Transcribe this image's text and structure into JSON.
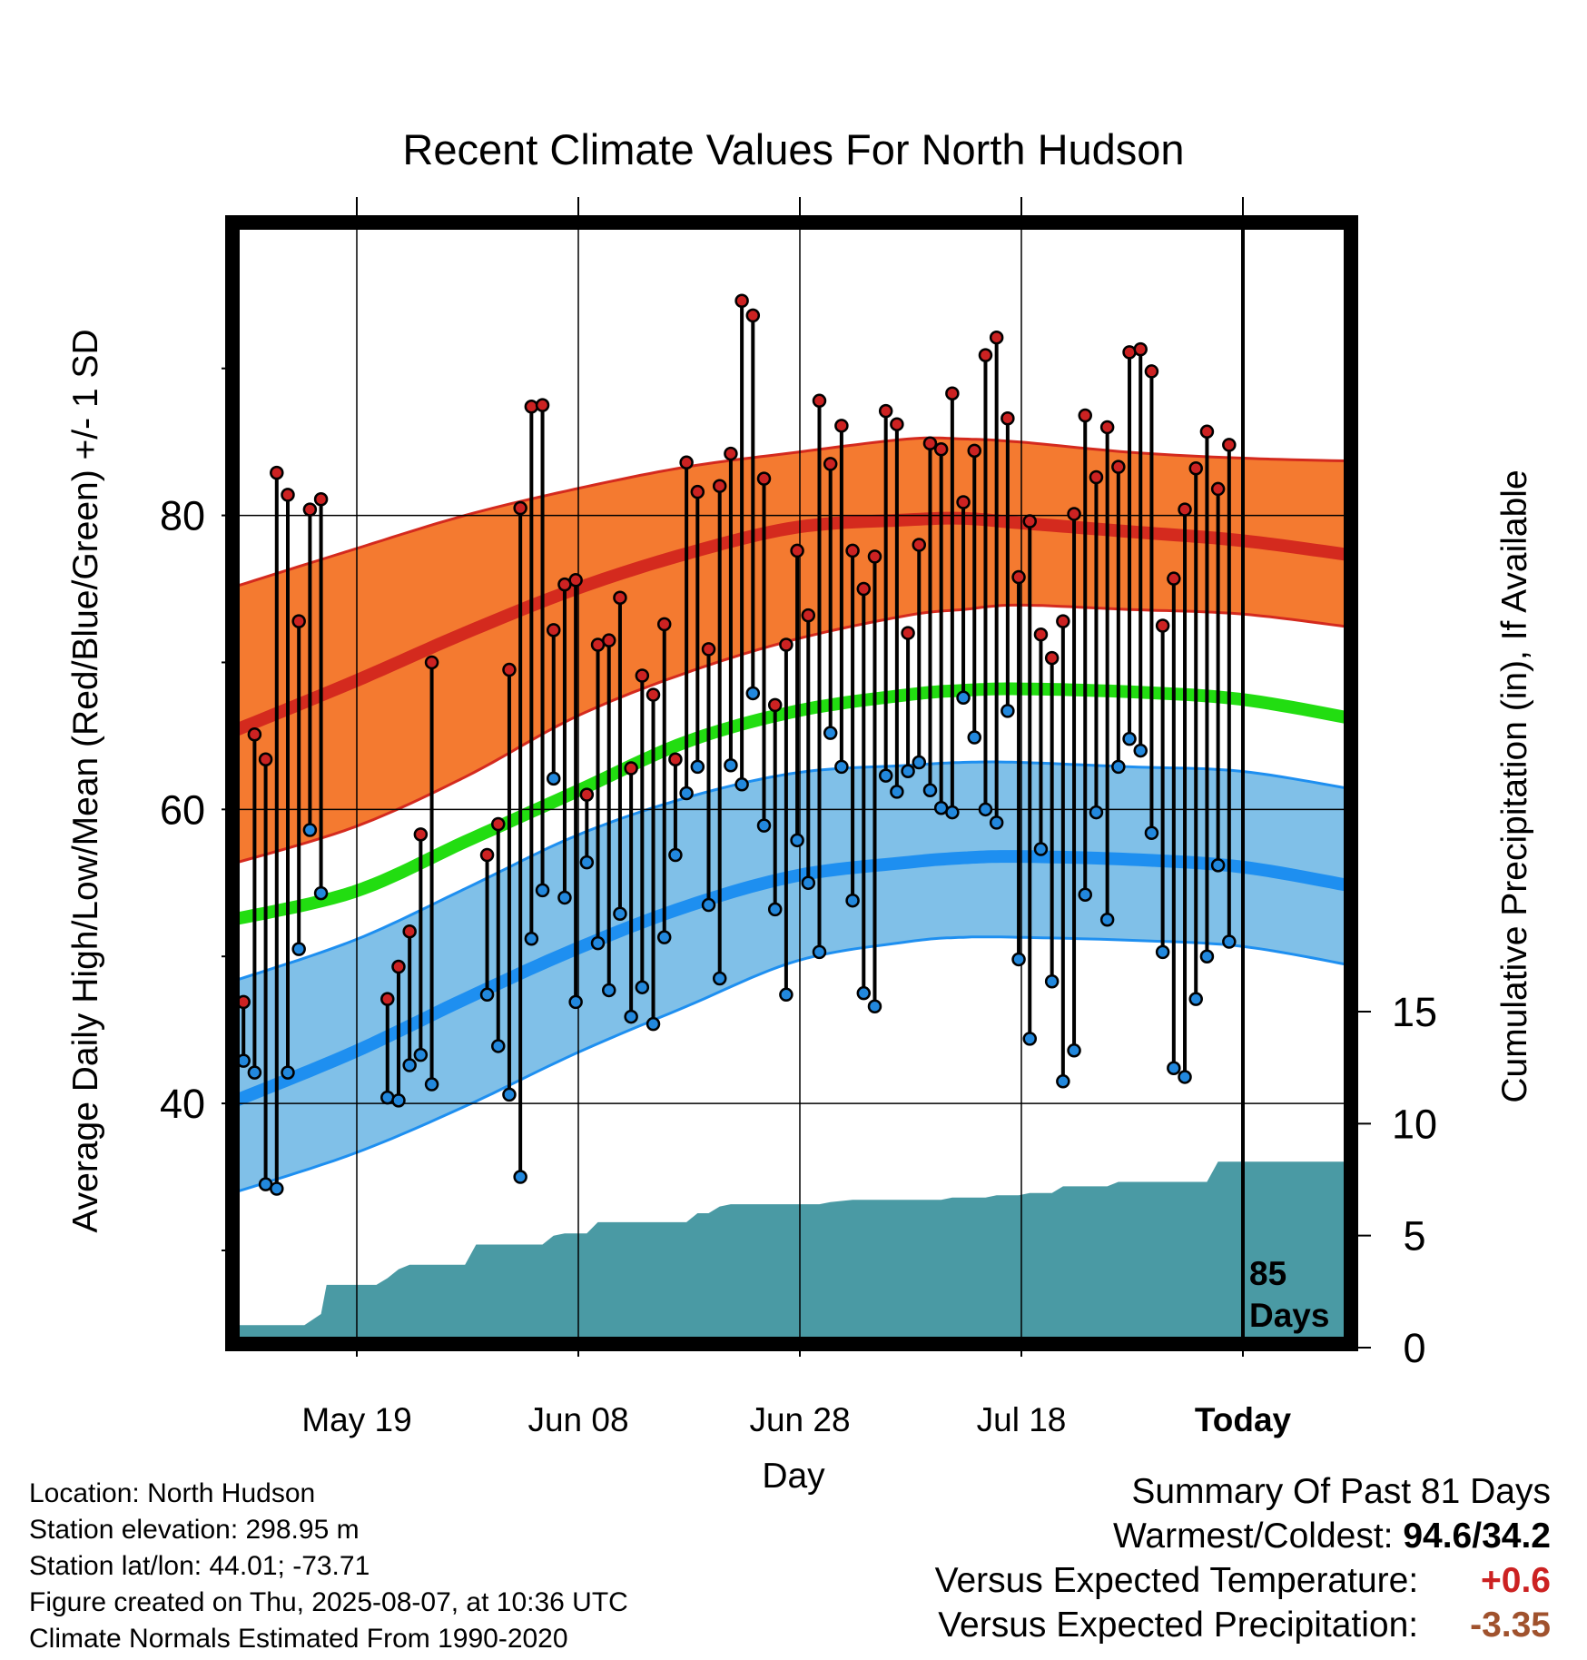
{
  "chart_data": {
    "type": "line",
    "title": "Recent Climate Values For North Hudson",
    "xlabel": "Day",
    "ylabel": "Average Daily High/Low/Mean (Red/Blue/Green) +/- 1 SD",
    "y2label": "Cumulative Precipitation (in), If Available",
    "xticks": [
      "May 19",
      "Jun 08",
      "Jun 28",
      "Jul 18",
      "Today"
    ],
    "yticks": [
      40,
      60,
      80
    ],
    "y2ticks": [
      0,
      5,
      10,
      15
    ],
    "ylim": [
      24.5,
      99
    ],
    "y2lim": [
      0,
      46
    ],
    "xlim": [
      -11,
      90
    ],
    "grid": true,
    "days_annotation": [
      "85",
      "Days"
    ],
    "colors": {
      "high": "#d42a1e",
      "high_band": "#f47a30",
      "low": "#1e8ff0",
      "low_band": "#80c0e8",
      "mean": "#22dd11",
      "observed_high_marker": "#cc2222",
      "observed_low_marker": "#2288dd",
      "precipitation": "#4a9aa4"
    },
    "normals": {
      "x": [
        -11,
        0,
        10,
        20,
        30,
        40,
        50,
        55,
        60,
        70,
        80,
        90
      ],
      "high_mean": [
        65.3,
        68.7,
        72,
        75,
        77.4,
        79.2,
        79.7,
        79.8,
        79.5,
        78.9,
        78.3,
        77.3
      ],
      "high_upper": [
        75.1,
        77.7,
        80,
        81.8,
        83.3,
        84.3,
        85.2,
        85.2,
        85.0,
        84.3,
        83.9,
        83.7
      ],
      "high_lower": [
        56.3,
        58.8,
        62.2,
        66.3,
        69.3,
        71.6,
        73.2,
        73.6,
        73.9,
        73.6,
        73.3,
        72.4
      ],
      "mean": [
        52.5,
        54.4,
        57.8,
        61.2,
        64.6,
        66.7,
        67.8,
        68.1,
        68.2,
        68.0,
        67.5,
        66.2
      ],
      "low_mean": [
        40.1,
        43.5,
        47.1,
        50.5,
        53.4,
        55.5,
        56.4,
        56.7,
        56.8,
        56.6,
        56.1,
        54.8
      ],
      "low_upper": [
        48.3,
        51.1,
        54.6,
        58.2,
        60.8,
        62.5,
        63.0,
        63.2,
        63.2,
        62.9,
        62.6,
        61.4
      ],
      "low_lower": [
        33.9,
        36.6,
        39.8,
        43.4,
        46.6,
        49.7,
        51.0,
        51.3,
        51.3,
        51.1,
        50.7,
        49.4
      ]
    },
    "observed": [
      {
        "day": -10,
        "high": 46.9,
        "low": 42.9
      },
      {
        "day": -9,
        "high": 65.1,
        "low": 42.1
      },
      {
        "day": -8,
        "high": 63.4,
        "low": 34.5
      },
      {
        "day": -7,
        "high": 82.9,
        "low": 34.2
      },
      {
        "day": -6,
        "high": 81.4,
        "low": 42.1
      },
      {
        "day": -5,
        "high": 72.8,
        "low": 50.5
      },
      {
        "day": -4,
        "high": 80.4,
        "low": 58.6
      },
      {
        "day": -3,
        "high": 81.1,
        "low": 54.3
      },
      {
        "day": 3,
        "high": 47.1,
        "low": 40.4
      },
      {
        "day": 4,
        "high": 49.3,
        "low": 40.2
      },
      {
        "day": 5,
        "high": 51.7,
        "low": 42.6
      },
      {
        "day": 6,
        "high": 58.3,
        "low": 43.3
      },
      {
        "day": 7,
        "high": 70.0,
        "low": 41.3
      },
      {
        "day": 12,
        "high": 56.9,
        "low": 47.4
      },
      {
        "day": 13,
        "high": 59.0,
        "low": 43.9
      },
      {
        "day": 14,
        "high": 69.5,
        "low": 40.6
      },
      {
        "day": 15,
        "high": 80.5,
        "low": 35.0
      },
      {
        "day": 16,
        "high": 87.4,
        "low": 51.2
      },
      {
        "day": 17,
        "high": 87.5,
        "low": 54.5
      },
      {
        "day": 18,
        "high": 72.2,
        "low": 62.1
      },
      {
        "day": 19,
        "high": 75.3,
        "low": 54.0
      },
      {
        "day": 20,
        "high": 75.6,
        "low": 46.9
      },
      {
        "day": 21,
        "high": 61.0,
        "low": 56.4
      },
      {
        "day": 22,
        "high": 71.2,
        "low": 50.9
      },
      {
        "day": 23,
        "high": 71.5,
        "low": 47.7
      },
      {
        "day": 24,
        "high": 74.4,
        "low": 52.9
      },
      {
        "day": 25,
        "high": 62.8,
        "low": 45.9
      },
      {
        "day": 26,
        "high": 69.1,
        "low": 47.9
      },
      {
        "day": 27,
        "high": 67.8,
        "low": 45.4
      },
      {
        "day": 28,
        "high": 72.6,
        "low": 51.3
      },
      {
        "day": 29,
        "high": 63.4,
        "low": 56.9
      },
      {
        "day": 30,
        "high": 83.6,
        "low": 61.1
      },
      {
        "day": 31,
        "high": 81.6,
        "low": 62.9
      },
      {
        "day": 32,
        "high": 70.9,
        "low": 53.5
      },
      {
        "day": 33,
        "high": 82.0,
        "low": 48.5
      },
      {
        "day": 34,
        "high": 84.2,
        "low": 63.0
      },
      {
        "day": 35,
        "high": 94.6,
        "low": 61.7
      },
      {
        "day": 36,
        "high": 93.6,
        "low": 67.9
      },
      {
        "day": 37,
        "high": 82.5,
        "low": 58.9
      },
      {
        "day": 38,
        "high": 67.1,
        "low": 53.2
      },
      {
        "day": 39,
        "high": 71.2,
        "low": 47.4
      },
      {
        "day": 40,
        "high": 77.6,
        "low": 57.9
      },
      {
        "day": 41,
        "high": 73.2,
        "low": 55.0
      },
      {
        "day": 42,
        "high": 87.8,
        "low": 50.3
      },
      {
        "day": 43,
        "high": 83.5,
        "low": 65.2
      },
      {
        "day": 44,
        "high": 86.1,
        "low": 62.9
      },
      {
        "day": 45,
        "high": 77.6,
        "low": 53.8
      },
      {
        "day": 46,
        "high": 75.0,
        "low": 47.5
      },
      {
        "day": 47,
        "high": 77.2,
        "low": 46.6
      },
      {
        "day": 48,
        "high": 87.1,
        "low": 62.3
      },
      {
        "day": 49,
        "high": 86.2,
        "low": 61.2
      },
      {
        "day": 50,
        "high": 72.0,
        "low": 62.6
      },
      {
        "day": 51,
        "high": 78.0,
        "low": 63.2
      },
      {
        "day": 52,
        "high": 84.9,
        "low": 61.3
      },
      {
        "day": 53,
        "high": 84.5,
        "low": 60.1
      },
      {
        "day": 54,
        "high": 88.3,
        "low": 59.8
      },
      {
        "day": 55,
        "high": 80.9,
        "low": 67.6
      },
      {
        "day": 56,
        "high": 84.4,
        "low": 64.9
      },
      {
        "day": 57,
        "high": 90.9,
        "low": 60.0
      },
      {
        "day": 58,
        "high": 92.1,
        "low": 59.1
      },
      {
        "day": 59,
        "high": 86.6,
        "low": 66.7
      },
      {
        "day": 60,
        "high": 75.8,
        "low": 49.8
      },
      {
        "day": 61,
        "high": 79.6,
        "low": 44.4
      },
      {
        "day": 62,
        "high": 71.9,
        "low": 57.3
      },
      {
        "day": 63,
        "high": 70.3,
        "low": 48.3
      },
      {
        "day": 64,
        "high": 72.8,
        "low": 41.5
      },
      {
        "day": 65,
        "high": 80.1,
        "low": 43.6
      },
      {
        "day": 66,
        "high": 86.8,
        "low": 54.2
      },
      {
        "day": 67,
        "high": 82.6,
        "low": 59.8
      },
      {
        "day": 68,
        "high": 86.0,
        "low": 52.5
      },
      {
        "day": 69,
        "high": 83.3,
        "low": 62.9
      },
      {
        "day": 70,
        "high": 91.1,
        "low": 64.8
      },
      {
        "day": 71,
        "high": 91.3,
        "low": 64.0
      },
      {
        "day": 72,
        "high": 89.8,
        "low": 58.4
      },
      {
        "day": 73,
        "high": 72.5,
        "low": 50.3
      },
      {
        "day": 74,
        "high": 75.7,
        "low": 42.4
      },
      {
        "day": 75,
        "high": 80.4,
        "low": 41.8
      },
      {
        "day": 76,
        "high": 83.2,
        "low": 47.1
      },
      {
        "day": 77,
        "high": 85.7,
        "low": 50.0
      },
      {
        "day": 78,
        "high": 81.8,
        "low": 56.2
      },
      {
        "day": 79,
        "high": 84.8,
        "low": 51.0
      }
    ],
    "precipitation": {
      "x": [
        -11,
        -4.5,
        -3,
        -2.5,
        2,
        3,
        4,
        5,
        10,
        11,
        12,
        17,
        18,
        19,
        21,
        22,
        30,
        31,
        32,
        33,
        34,
        40,
        42,
        43,
        45,
        53,
        54,
        57,
        58,
        59,
        60,
        61,
        63,
        64,
        68,
        69,
        70,
        71,
        77,
        78,
        80,
        90
      ],
      "y": [
        1.0,
        1.0,
        1.5,
        2.8,
        2.8,
        3.1,
        3.5,
        3.7,
        3.7,
        4.6,
        4.6,
        4.6,
        5.0,
        5.1,
        5.1,
        5.6,
        5.6,
        6.0,
        6.0,
        6.3,
        6.4,
        6.4,
        6.4,
        6.5,
        6.6,
        6.6,
        6.7,
        6.7,
        6.8,
        6.8,
        6.8,
        6.9,
        6.9,
        7.2,
        7.2,
        7.4,
        7.4,
        7.4,
        7.4,
        8.3,
        8.3,
        8.3
      ]
    }
  },
  "footer": {
    "location": "Location: North Hudson",
    "elevation": "Station elevation: 298.95 m",
    "latlon": "Station lat/lon: 44.01; -73.71",
    "created": "Figure created on Thu, 2025-08-07, at 10:36 UTC",
    "normals": "Climate Normals Estimated From 1990-2020"
  },
  "summary": {
    "title": "Summary Of Past 81 Days",
    "warmest_coldest_label": "Warmest/Coldest:",
    "warmest_coldest_value": "94.6/34.2",
    "temp_label": "Versus Expected Temperature:",
    "temp_value": "+0.6",
    "temp_color": "#cc2222",
    "precip_label": "Versus Expected Precipitation:",
    "precip_value": "-3.35",
    "precip_color": "#a0522d"
  }
}
